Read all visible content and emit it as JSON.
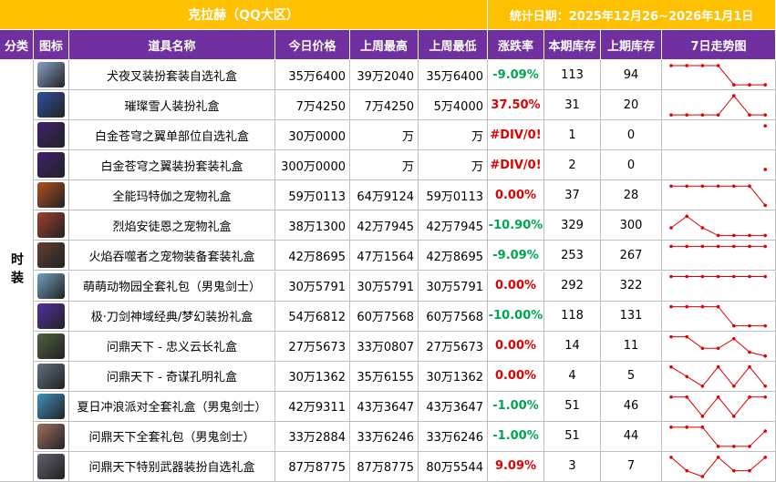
{
  "header": {
    "title": "克拉赫（QQ大区）",
    "date": "统计日期：2025年12月26~2026年1月1日"
  },
  "table": {
    "columns": [
      "分类",
      "图标",
      "道具名称",
      "今日价格",
      "上周最高",
      "上周最低",
      "涨跌率",
      "本期库存",
      "上期库存",
      "7日走势图"
    ],
    "category": "时装",
    "rows": [
      {
        "name": "犬夜叉装扮套装自选礼盒",
        "price": "35万6400",
        "week_high": "39万2040",
        "week_low": "35万6400",
        "change": "-9.09%",
        "change_color": "#00a651",
        "stock_now": "113",
        "stock_prev": "94",
        "trend": [
          1,
          1,
          1,
          1,
          0,
          0,
          0
        ]
      },
      {
        "name": "璀璨雪人装扮礼盒",
        "price": "7万4250",
        "week_high": "7万4250",
        "week_low": "5万4000",
        "change": "37.50%",
        "change_color": "#e00000",
        "stock_now": "31",
        "stock_prev": "20",
        "trend": [
          0,
          0,
          0,
          0,
          1,
          0,
          0
        ]
      },
      {
        "name": "白金苍穹之翼单部位自选礼盒",
        "price": "30万0000",
        "week_high": "万",
        "week_low": "万",
        "change": "#DIV/0!",
        "change_color": "#e00000",
        "stock_now": "1",
        "stock_prev": "0",
        "trend": [
          null,
          null,
          null,
          null,
          null,
          null,
          1
        ]
      },
      {
        "name": "白金苍穹之翼装扮套装礼盒",
        "price": "300万0000",
        "week_high": "万",
        "week_low": "万",
        "change": "#DIV/0!",
        "change_color": "#e00000",
        "stock_now": "2",
        "stock_prev": "0",
        "trend": [
          null,
          null,
          null,
          null,
          null,
          null,
          0.3
        ]
      },
      {
        "name": "全能玛特伽之宠物礼盒",
        "price": "59万0113",
        "week_high": "64万9124",
        "week_low": "59万0113",
        "change": "0.00%",
        "change_color": "#e00000",
        "stock_now": "37",
        "stock_prev": "28",
        "trend": [
          1,
          1,
          1,
          1,
          1,
          1,
          0
        ]
      },
      {
        "name": "烈焰安徒恩之宠物礼盒",
        "price": "38万1300",
        "week_high": "42万7945",
        "week_low": "42万7945",
        "change": "-10.90%",
        "change_color": "#00a651",
        "stock_now": "329",
        "stock_prev": "300",
        "trend": [
          0.4,
          1,
          0.4,
          0,
          0,
          0,
          0
        ]
      },
      {
        "name": "火焰吞噬者之宠物装备套装礼盒",
        "price": "42万8695",
        "week_high": "47万1564",
        "week_low": "42万8695",
        "change": "-9.09%",
        "change_color": "#00a651",
        "stock_now": "253",
        "stock_prev": "267",
        "trend": [
          1,
          1,
          1,
          1,
          1,
          1,
          1
        ]
      },
      {
        "name": "萌萌动物园全套礼包（男鬼剑士）",
        "price": "30万5791",
        "week_high": "30万5791",
        "week_low": "30万5791",
        "change": "0.00%",
        "change_color": "#e00000",
        "stock_now": "292",
        "stock_prev": "322",
        "trend": [
          1,
          1,
          1,
          1,
          1,
          1,
          1
        ]
      },
      {
        "name": "极·刀剑神域经典/梦幻装扮礼盒",
        "price": "54万6812",
        "week_high": "60万7568",
        "week_low": "60万7568",
        "change": "-10.00%",
        "change_color": "#00a651",
        "stock_now": "118",
        "stock_prev": "131",
        "trend": [
          1,
          1,
          1,
          1,
          0,
          0,
          0
        ]
      },
      {
        "name": "问鼎天下 - 忠义云长礼盒",
        "price": "27万5673",
        "week_high": "33万0807",
        "week_low": "27万5673",
        "change": "0.00%",
        "change_color": "#e00000",
        "stock_now": "14",
        "stock_prev": "11",
        "trend": [
          1,
          1,
          0.4,
          0.4,
          0.9,
          0.2,
          0
        ]
      },
      {
        "name": "问鼎天下 - 奇谋孔明礼盒",
        "price": "30万1362",
        "week_high": "35万6155",
        "week_low": "30万1362",
        "change": "0.00%",
        "change_color": "#e00000",
        "stock_now": "4",
        "stock_prev": "5",
        "trend": [
          1,
          0.5,
          0,
          1,
          0,
          1,
          0
        ]
      },
      {
        "name": "夏日冲浪派对全套礼盒（男鬼剑士）",
        "price": "42万9311",
        "week_high": "43万3647",
        "week_low": "43万3647",
        "change": "-1.00%",
        "change_color": "#00a651",
        "stock_now": "51",
        "stock_prev": "46",
        "trend": [
          1,
          1,
          0,
          1,
          0,
          1,
          1
        ]
      },
      {
        "name": "问鼎天下全套礼包（男鬼剑士）",
        "price": "33万2884",
        "week_high": "33万6246",
        "week_low": "33万6246",
        "change": "-1.00%",
        "change_color": "#00a651",
        "stock_now": "51",
        "stock_prev": "44",
        "trend": [
          1,
          1,
          1,
          0,
          0,
          0,
          0.8
        ]
      },
      {
        "name": "问鼎天下特别武器装扮自选礼盒",
        "price": "87万8775",
        "week_high": "87万8775",
        "week_low": "80万5544",
        "change": "9.09%",
        "change_color": "#e00000",
        "stock_now": "3",
        "stock_prev": "7",
        "trend": [
          1,
          0.3,
          0,
          1,
          0.3,
          0.3,
          1
        ]
      }
    ]
  }
}
